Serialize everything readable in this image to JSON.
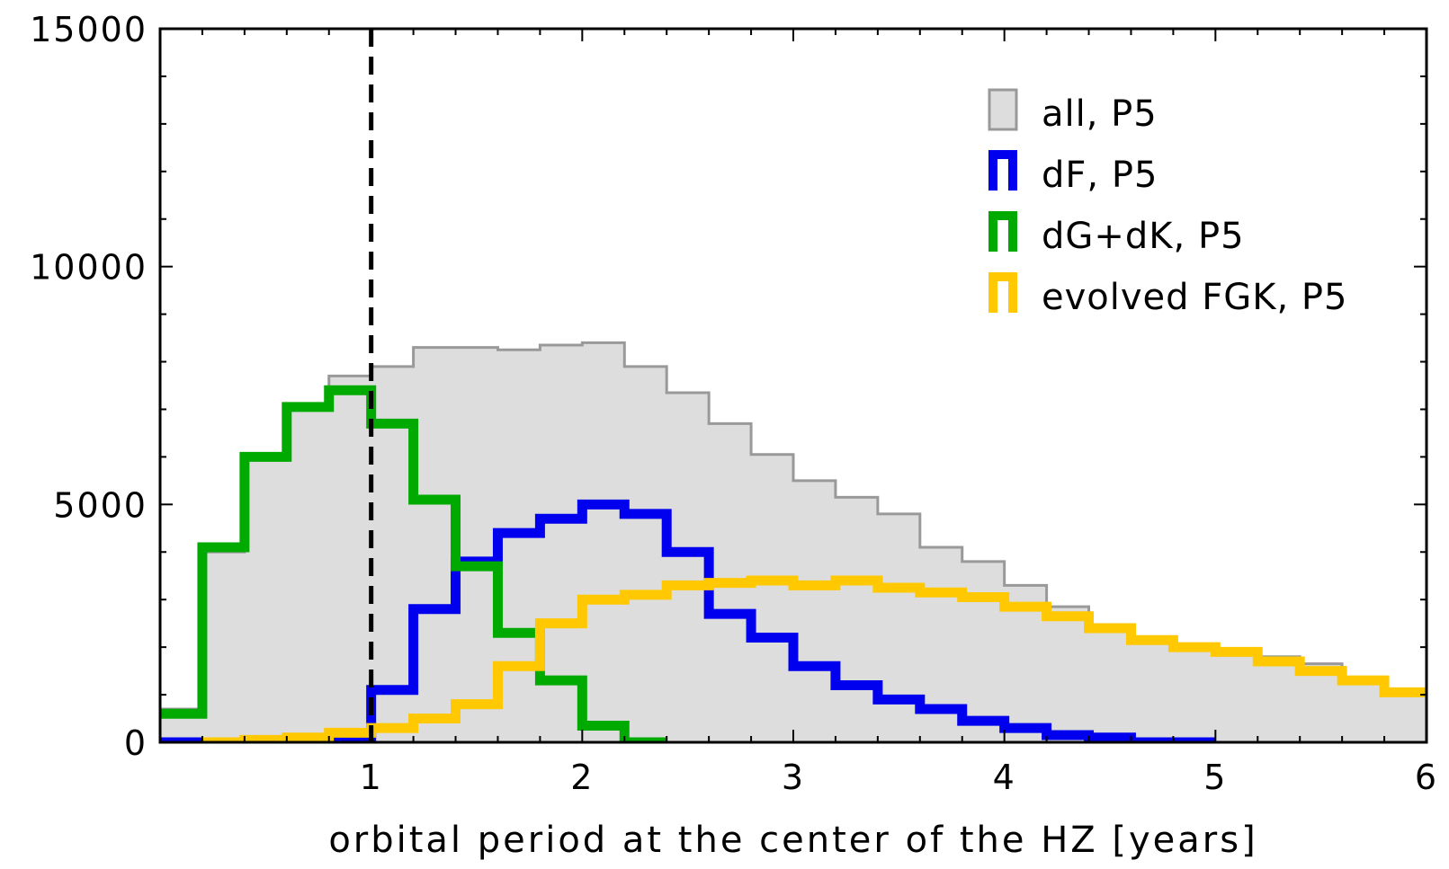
{
  "chart_data": {
    "type": "histogram",
    "title": "",
    "xlabel": "orbital period at the center of the HZ [years]",
    "ylabel": "",
    "xlim": [
      0,
      6
    ],
    "ylim": [
      0,
      15000
    ],
    "xticks": [
      1,
      2,
      3,
      4,
      5,
      6
    ],
    "yticks": [
      0,
      5000,
      10000,
      15000
    ],
    "bin_edges": [
      0,
      0.2,
      0.4,
      0.6,
      0.8,
      1.0,
      1.2,
      1.4,
      1.6,
      1.8,
      2.0,
      2.2,
      2.4,
      2.6,
      2.8,
      3.0,
      3.2,
      3.4,
      3.6,
      3.8,
      4.0,
      4.2,
      4.4,
      4.6,
      4.8,
      5.0,
      5.2,
      5.4,
      5.6,
      5.8,
      6.0
    ],
    "reference_line": {
      "x": 1,
      "style": "dashed",
      "color": "#000000"
    },
    "legend_position": "top-right",
    "series": [
      {
        "name": "all, P5",
        "style": "filled",
        "color": "#999999",
        "fill": "#dddddd",
        "values": [
          700,
          4000,
          6000,
          7100,
          7700,
          7900,
          8300,
          8300,
          8250,
          8350,
          8400,
          7900,
          7350,
          6700,
          6050,
          5500,
          5150,
          4800,
          4100,
          3800,
          3300,
          2850,
          2450,
          2150,
          2000,
          1900,
          1800,
          1650,
          1350,
          1050
        ]
      },
      {
        "name": "dF, P5",
        "style": "step",
        "color": "#0000ee",
        "values": [
          0,
          0,
          0,
          0,
          0,
          1100,
          2800,
          3800,
          4400,
          4700,
          5000,
          4800,
          4000,
          2700,
          2200,
          1600,
          1200,
          900,
          700,
          450,
          300,
          150,
          100,
          0,
          0,
          null,
          null,
          null,
          null,
          null
        ]
      },
      {
        "name": "dG+dK, P5",
        "style": "step",
        "color": "#00aa00",
        "values": [
          600,
          4100,
          6000,
          7050,
          7400,
          6700,
          5100,
          3700,
          2300,
          1300,
          350,
          0,
          null,
          null,
          null,
          null,
          null,
          null,
          null,
          null,
          null,
          null,
          null,
          null,
          null,
          null,
          null,
          null,
          null,
          null
        ]
      },
      {
        "name": "evolved FGK, P5",
        "style": "step",
        "color": "#ffc800",
        "values": [
          null,
          0,
          50,
          100,
          200,
          300,
          500,
          800,
          1600,
          2500,
          3000,
          3100,
          3300,
          3350,
          3400,
          3300,
          3400,
          3250,
          3150,
          3050,
          2850,
          2650,
          2400,
          2150,
          2000,
          1900,
          1700,
          1500,
          1300,
          1050
        ]
      }
    ]
  }
}
